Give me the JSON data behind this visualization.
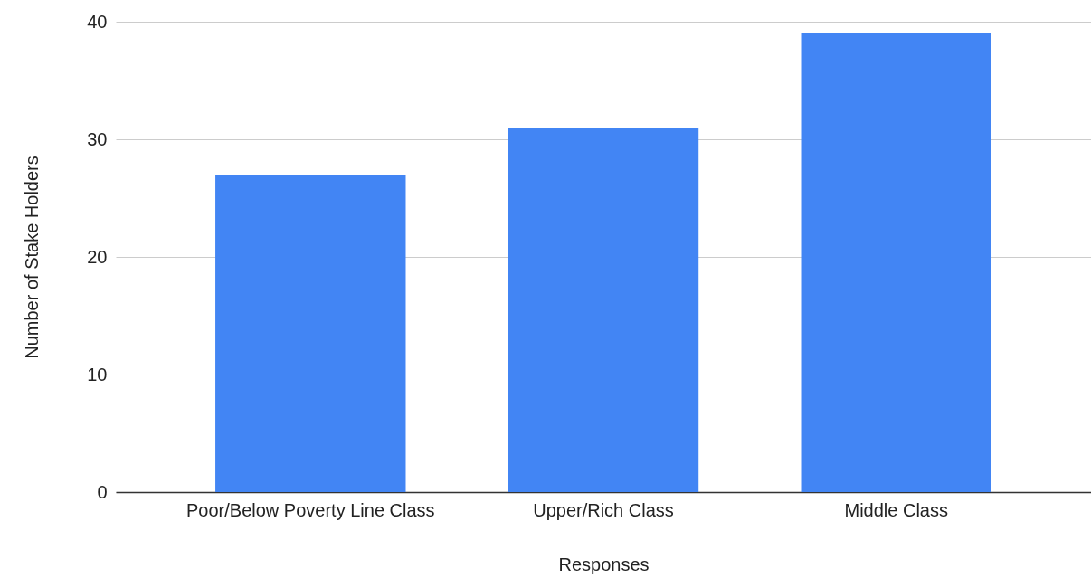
{
  "chart_data": {
    "type": "bar",
    "xlabel": "Responses",
    "ylabel": "Number of Stake Holders",
    "categories": [
      "Poor/Below Poverty Line Class",
      "Upper/Rich Class",
      "Middle Class"
    ],
    "values": [
      27,
      31,
      39
    ],
    "color": "#4285f4",
    "ylim": [
      0,
      40
    ],
    "yticks": [
      0,
      10,
      20,
      30,
      40
    ],
    "grid": "y"
  }
}
